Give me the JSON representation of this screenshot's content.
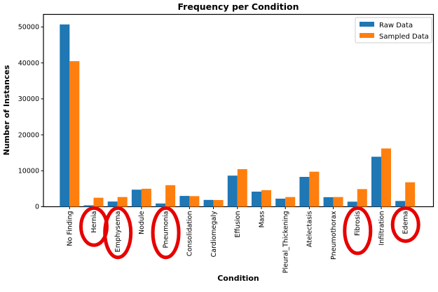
{
  "figure": {
    "title": "Frequency per Condition",
    "xlabel": "Condition",
    "ylabel": "Number of Instances"
  },
  "legend": {
    "entries": [
      {
        "label": "Raw Data",
        "color": "#1f77b4"
      },
      {
        "label": "Sampled Data",
        "color": "#ff7f0e"
      }
    ],
    "position": "upper right"
  },
  "chart_data": {
    "type": "bar",
    "title": "Frequency per Condition",
    "xlabel": "Condition",
    "ylabel": "Number of Instances",
    "categories": [
      "No Finding",
      "Hernia",
      "Emphysema",
      "Nodule",
      "Pneumonia",
      "Consolidation",
      "Cardiomegaly",
      "Effusion",
      "Mass",
      "Pleural_Thickening",
      "Atelectasis",
      "Pneumothorax",
      "Fibrosis",
      "Infiltration",
      "Edema"
    ],
    "series": [
      {
        "name": "Raw Data",
        "color": "#1f77b4",
        "values": [
          50700,
          400,
          1450,
          4750,
          900,
          3000,
          1900,
          8650,
          4200,
          2250,
          8300,
          2650,
          1400,
          13900,
          1600
        ]
      },
      {
        "name": "Sampled Data",
        "color": "#ff7f0e",
        "values": [
          40500,
          2500,
          2700,
          5000,
          6000,
          2950,
          1850,
          10450,
          4600,
          2700,
          9750,
          2700,
          4900,
          16200,
          6800
        ]
      }
    ],
    "ylim": [
      0,
      53500
    ],
    "yticks": [
      0,
      10000,
      20000,
      30000,
      40000,
      50000
    ],
    "grid": false,
    "legend_position": "upper right",
    "annotations": {
      "circled_labels": [
        "Hernia",
        "Emphysema",
        "Pneumonia",
        "Fibrosis",
        "Edema"
      ],
      "circle_color": "#e60000"
    }
  }
}
